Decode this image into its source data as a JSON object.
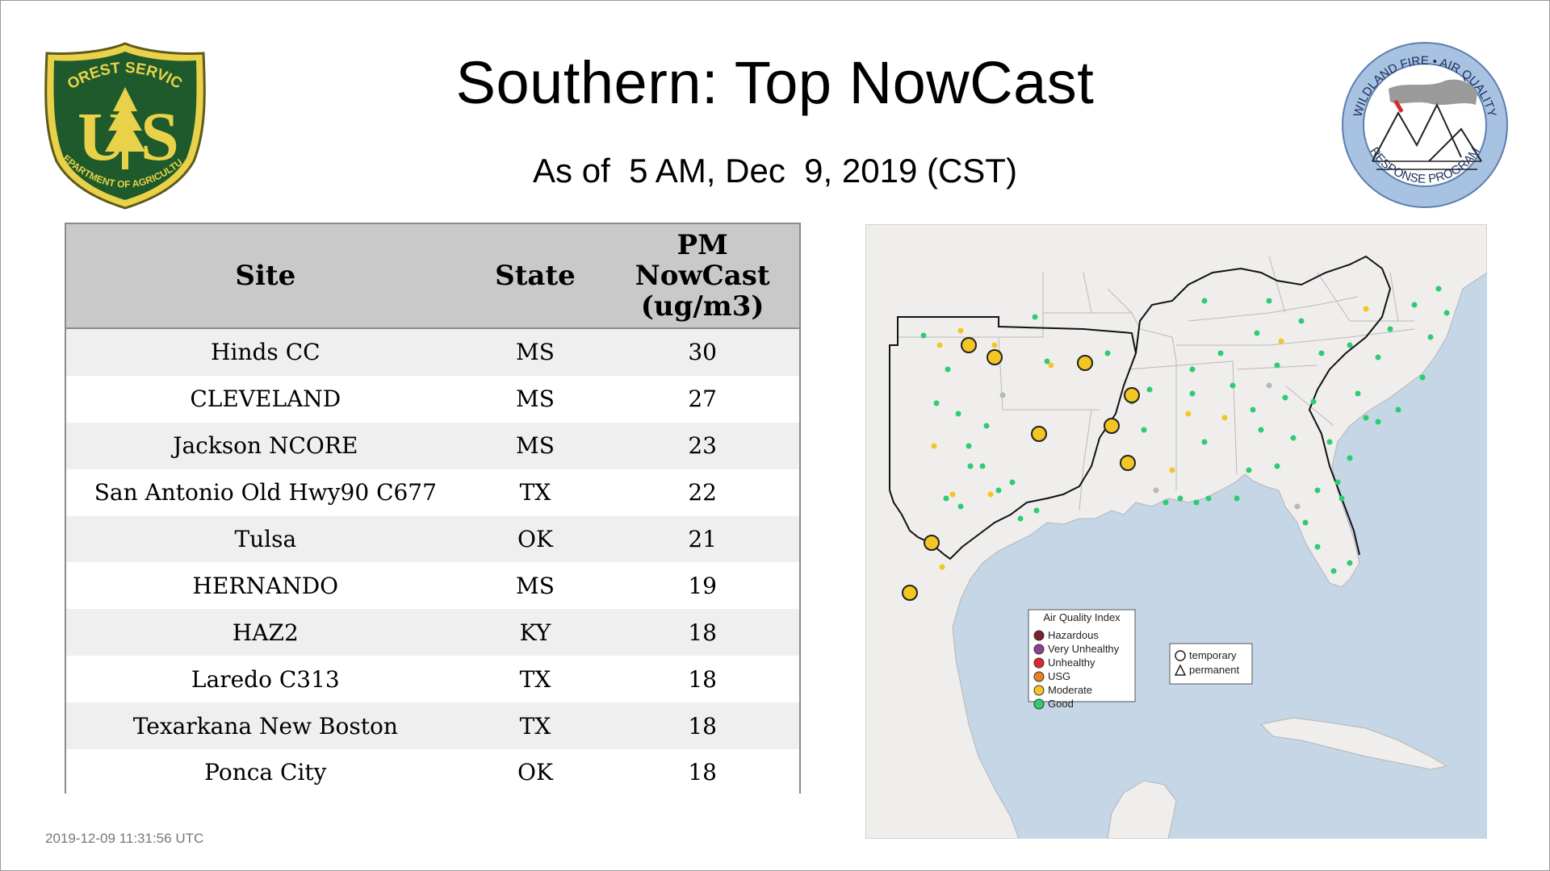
{
  "title": "Southern: Top NowCast",
  "subtitle": "As of  5 AM, Dec  9, 2019 (CST)",
  "timestamp": "2019-12-09 11:31:56 UTC",
  "logos": {
    "forest_service": {
      "top": "FOREST SERVICE",
      "letters": "US",
      "bottom": "DEPARTMENT OF AGRICULTURE"
    },
    "wildland_fire": {
      "top": "WILDLAND FIRE • AIR QUALITY",
      "bottom": "RESPONSE PROGRAM"
    }
  },
  "table": {
    "headers": {
      "site": "Site",
      "state": "State",
      "pm_line1": "PM",
      "pm_line2": "NowCast",
      "pm_line3": "(ug/m3)"
    },
    "rows": [
      {
        "site": "Hinds CC",
        "state": "MS",
        "value": "30"
      },
      {
        "site": "CLEVELAND",
        "state": "MS",
        "value": "27"
      },
      {
        "site": "Jackson NCORE",
        "state": "MS",
        "value": "23"
      },
      {
        "site": "San Antonio Old Hwy90 C677",
        "state": "TX",
        "value": "22"
      },
      {
        "site": "Tulsa",
        "state": "OK",
        "value": "21"
      },
      {
        "site": "HERNANDO",
        "state": "MS",
        "value": "19"
      },
      {
        "site": "HAZ2",
        "state": "KY",
        "value": "18"
      },
      {
        "site": "Laredo C313",
        "state": "TX",
        "value": "18"
      },
      {
        "site": "Texarkana New Boston",
        "state": "TX",
        "value": "18"
      },
      {
        "site": "Ponca City",
        "state": "OK",
        "value": "18"
      }
    ]
  },
  "legend": {
    "title": "Air Quality Index",
    "items": [
      {
        "label": "Hazardous",
        "color": "#7e1f2e"
      },
      {
        "label": "Very Unhealthy",
        "color": "#8f3f97"
      },
      {
        "label": "Unhealthy",
        "color": "#e3262e"
      },
      {
        "label": "USG",
        "color": "#ee7e22"
      },
      {
        "label": "Moderate",
        "color": "#f3c623"
      },
      {
        "label": "Good",
        "color": "#2ecc71"
      }
    ],
    "shapes": [
      {
        "label": "temporary",
        "icon": "circle"
      },
      {
        "label": "permanent",
        "icon": "triangle"
      }
    ]
  },
  "colors": {
    "water": "#c5d6e6",
    "land": "#f0eeec",
    "moderate": "#f3c623",
    "good": "#2ecc71",
    "nodata": "#b8b8b8"
  }
}
